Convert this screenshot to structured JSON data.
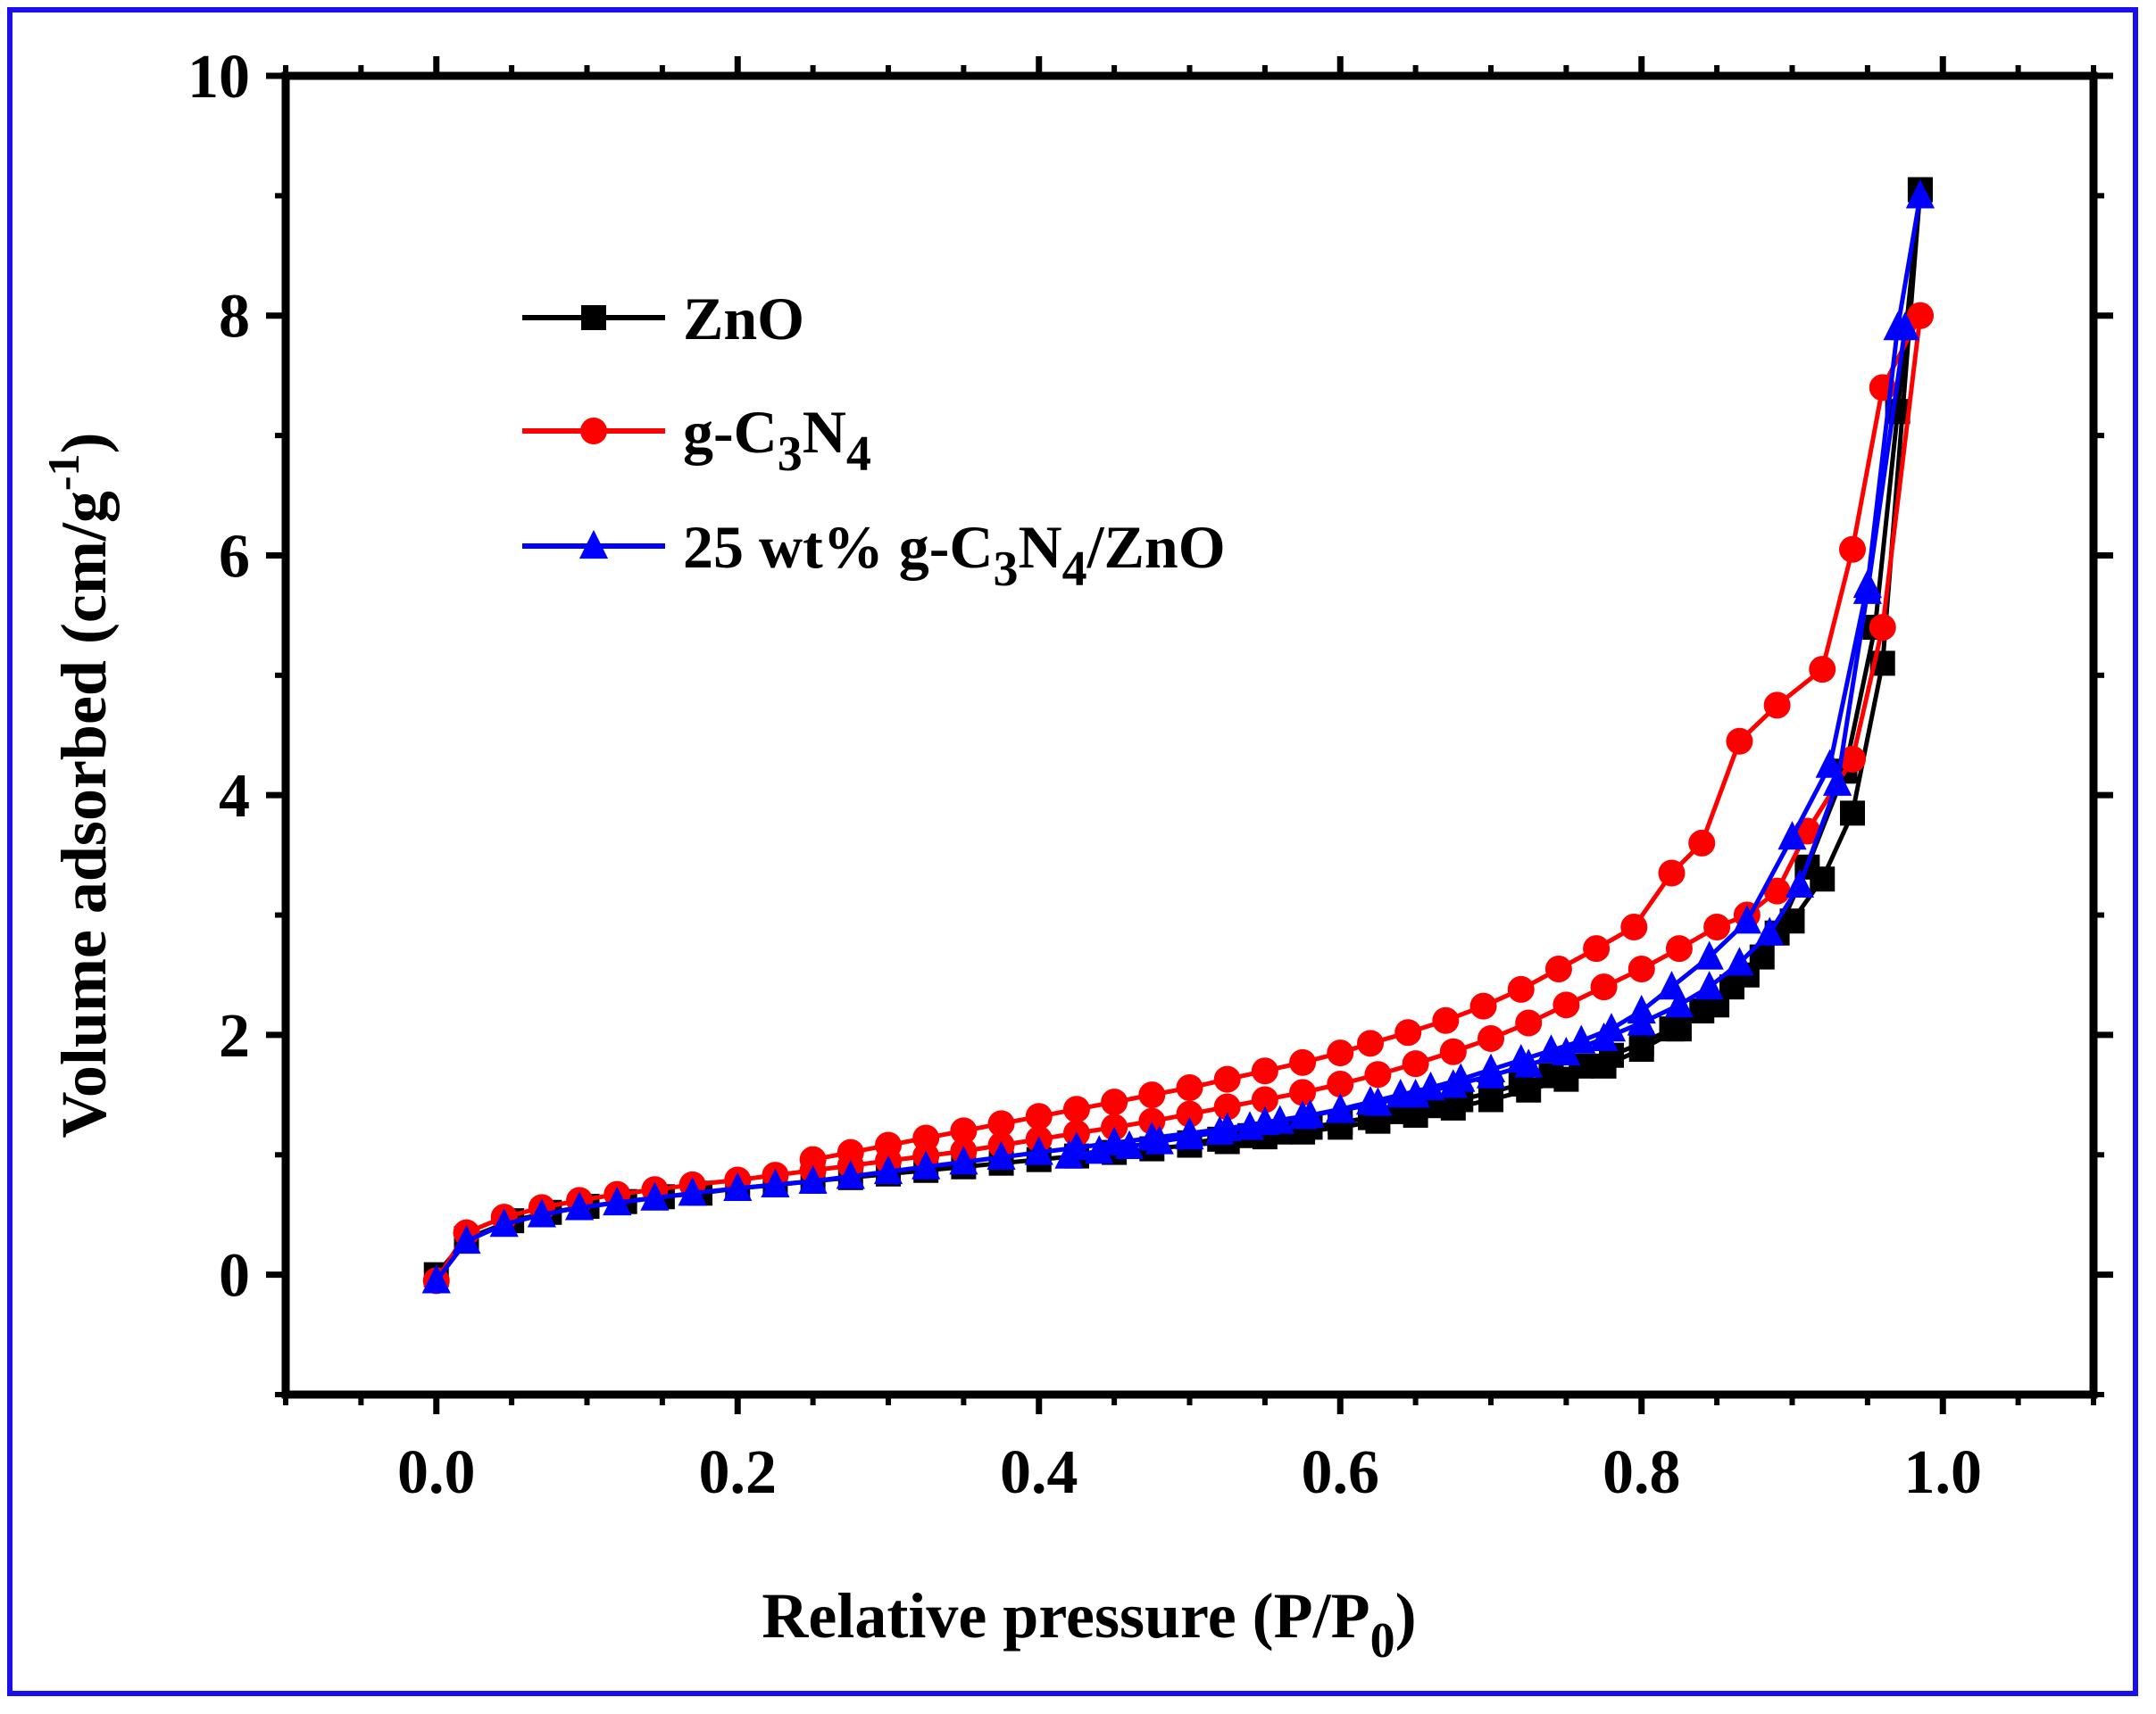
{
  "chart_data": {
    "type": "line",
    "title": "",
    "xlabel": "Relative pressure (P/P",
    "xlabel_sub": "0",
    "xlabel_close": ")",
    "ylabel": "Volume adsorbed (cm/g",
    "ylabel_sup": "-1",
    "ylabel_close": ")",
    "xlim": [
      -0.1,
      1.1
    ],
    "ylim": [
      -1,
      10
    ],
    "xticks": [
      "0.0",
      "0.2",
      "0.4",
      "0.6",
      "0.8",
      "1.0"
    ],
    "yticks": [
      "0",
      "2",
      "4",
      "6",
      "8",
      "10"
    ],
    "legend_position": "top-left",
    "series": [
      {
        "name": "ZnO",
        "legend_parts": [
          [
            "ZnO",
            ""
          ]
        ],
        "color": "#000000",
        "marker": "square",
        "adsorption": {
          "x": [
            0.0,
            0.02,
            0.05,
            0.075,
            0.1,
            0.125,
            0.15,
            0.175,
            0.2,
            0.225,
            0.25,
            0.275,
            0.3,
            0.325,
            0.35,
            0.375,
            0.4,
            0.425,
            0.45,
            0.475,
            0.5,
            0.525,
            0.55,
            0.575,
            0.6,
            0.625,
            0.65,
            0.675,
            0.7,
            0.725,
            0.75,
            0.775,
            0.8,
            0.825,
            0.85,
            0.87,
            0.89,
            0.91,
            0.935,
            0.955,
            0.97,
            0.985
          ],
          "y": [
            0.0,
            0.3,
            0.45,
            0.52,
            0.57,
            0.61,
            0.65,
            0.68,
            0.72,
            0.75,
            0.78,
            0.81,
            0.84,
            0.87,
            0.9,
            0.93,
            0.96,
            0.99,
            1.02,
            1.05,
            1.08,
            1.11,
            1.15,
            1.19,
            1.23,
            1.28,
            1.33,
            1.39,
            1.46,
            1.54,
            1.63,
            1.74,
            1.88,
            2.05,
            2.25,
            2.5,
            2.85,
            3.4,
            4.2,
            5.4,
            7.2,
            9.05
          ]
        },
        "desorption": {
          "x": [
            0.985,
            0.96,
            0.94,
            0.92,
            0.9,
            0.88,
            0.86,
            0.84,
            0.82,
            0.8,
            0.78,
            0.76,
            0.74,
            0.72,
            0.7,
            0.68,
            0.66,
            0.64,
            0.62,
            0.6,
            0.58,
            0.56,
            0.54,
            0.52,
            0.5
          ],
          "y": [
            9.05,
            5.1,
            3.85,
            3.3,
            2.95,
            2.65,
            2.4,
            2.2,
            2.05,
            1.93,
            1.83,
            1.74,
            1.66,
            1.59,
            1.52,
            1.46,
            1.41,
            1.36,
            1.31,
            1.27,
            1.23,
            1.19,
            1.16,
            1.13,
            1.1
          ]
        }
      },
      {
        "name": "g-C3N4",
        "legend_parts": [
          [
            "g-C",
            ""
          ],
          [
            "3",
            "sub"
          ],
          [
            "N",
            ""
          ],
          [
            "4",
            "sub"
          ]
        ],
        "color": "#ff0000",
        "marker": "circle",
        "adsorption": {
          "x": [
            0.0,
            0.02,
            0.045,
            0.07,
            0.095,
            0.12,
            0.145,
            0.17,
            0.2,
            0.225,
            0.25,
            0.275,
            0.3,
            0.325,
            0.35,
            0.375,
            0.4,
            0.425,
            0.45,
            0.475,
            0.5,
            0.525,
            0.55,
            0.575,
            0.6,
            0.625,
            0.65,
            0.675,
            0.7,
            0.725,
            0.75,
            0.775,
            0.8,
            0.825,
            0.85,
            0.87,
            0.89,
            0.91,
            0.94,
            0.96,
            0.985
          ],
          "y": [
            -0.05,
            0.35,
            0.48,
            0.56,
            0.62,
            0.67,
            0.71,
            0.75,
            0.79,
            0.83,
            0.87,
            0.91,
            0.95,
            0.99,
            1.03,
            1.08,
            1.13,
            1.18,
            1.23,
            1.28,
            1.34,
            1.4,
            1.46,
            1.52,
            1.59,
            1.67,
            1.76,
            1.86,
            1.97,
            2.1,
            2.25,
            2.4,
            2.55,
            2.72,
            2.9,
            3.0,
            3.2,
            3.7,
            4.3,
            5.4,
            8.0
          ]
        },
        "desorption": {
          "x": [
            0.985,
            0.96,
            0.94,
            0.92,
            0.89,
            0.865,
            0.84,
            0.82,
            0.795,
            0.77,
            0.745,
            0.72,
            0.695,
            0.67,
            0.645,
            0.62,
            0.6,
            0.575,
            0.55,
            0.525,
            0.5,
            0.475,
            0.45,
            0.425,
            0.4,
            0.375,
            0.35,
            0.325,
            0.3,
            0.275,
            0.25
          ],
          "y": [
            8.0,
            7.4,
            6.05,
            5.05,
            4.75,
            4.45,
            3.6,
            3.35,
            2.9,
            2.72,
            2.55,
            2.38,
            2.24,
            2.12,
            2.02,
            1.93,
            1.85,
            1.77,
            1.7,
            1.63,
            1.56,
            1.5,
            1.44,
            1.38,
            1.32,
            1.26,
            1.2,
            1.14,
            1.08,
            1.02,
            0.96
          ]
        }
      },
      {
        "name": "25 wt% g-C3N4/ZnO",
        "legend_parts": [
          [
            "25 wt% g-C",
            ""
          ],
          [
            "3",
            "sub"
          ],
          [
            "N",
            ""
          ],
          [
            "4",
            "sub"
          ],
          [
            "/ZnO",
            ""
          ]
        ],
        "color": "#0000ff",
        "marker": "triangle",
        "adsorption": {
          "x": [
            0.0,
            0.02,
            0.045,
            0.07,
            0.095,
            0.12,
            0.145,
            0.17,
            0.2,
            0.225,
            0.25,
            0.275,
            0.3,
            0.325,
            0.35,
            0.375,
            0.4,
            0.425,
            0.45,
            0.475,
            0.5,
            0.525,
            0.55,
            0.575,
            0.6,
            0.625,
            0.65,
            0.675,
            0.7,
            0.725,
            0.75,
            0.775,
            0.8,
            0.825,
            0.845,
            0.865,
            0.885,
            0.905,
            0.93,
            0.95,
            0.975
          ],
          "y": [
            -0.05,
            0.28,
            0.42,
            0.5,
            0.56,
            0.6,
            0.64,
            0.68,
            0.72,
            0.75,
            0.78,
            0.82,
            0.86,
            0.9,
            0.94,
            0.98,
            1.02,
            1.06,
            1.1,
            1.14,
            1.18,
            1.22,
            1.27,
            1.32,
            1.37,
            1.43,
            1.5,
            1.58,
            1.66,
            1.75,
            1.85,
            1.97,
            2.1,
            2.25,
            2.4,
            2.6,
            2.85,
            3.25,
            4.1,
            5.7,
            7.9
          ]
        },
        "desorption": {
          "x": [
            0.985,
            0.97,
            0.95,
            0.925,
            0.9,
            0.87,
            0.845,
            0.82,
            0.8,
            0.78,
            0.76,
            0.74,
            0.72,
            0.7,
            0.68,
            0.66,
            0.64,
            0.62,
            0.6,
            0.58,
            0.56,
            0.54,
            0.52,
            0.5,
            0.48,
            0.46,
            0.44,
            0.42
          ],
          "y": [
            9.0,
            7.9,
            5.75,
            4.25,
            3.65,
            2.95,
            2.65,
            2.4,
            2.2,
            2.05,
            1.95,
            1.87,
            1.79,
            1.71,
            1.63,
            1.56,
            1.5,
            1.44,
            1.38,
            1.33,
            1.28,
            1.23,
            1.19,
            1.15,
            1.11,
            1.07,
            1.03,
            0.99
          ]
        }
      }
    ]
  }
}
